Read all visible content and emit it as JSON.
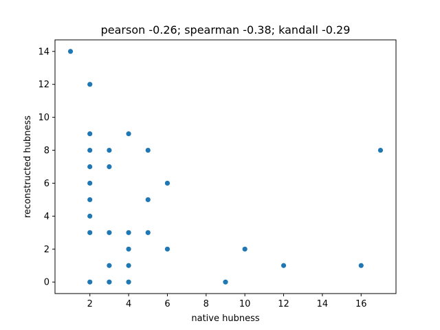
{
  "chart_data": {
    "type": "scatter",
    "title": "pearson -0.26; spearman -0.38; kandall -0.29",
    "xlabel": "native hubness",
    "ylabel": "reconstructed hubness",
    "xlim": [
      0.2,
      17.8
    ],
    "ylim": [
      -0.7,
      14.7
    ],
    "xticks": [
      2,
      4,
      6,
      8,
      10,
      12,
      14,
      16
    ],
    "yticks": [
      0,
      2,
      4,
      6,
      8,
      10,
      12,
      14
    ],
    "grid": false,
    "color": "#1f77b4",
    "points": [
      {
        "x": 1,
        "y": 14
      },
      {
        "x": 2,
        "y": 12
      },
      {
        "x": 2,
        "y": 9
      },
      {
        "x": 2,
        "y": 8
      },
      {
        "x": 2,
        "y": 7
      },
      {
        "x": 2,
        "y": 6
      },
      {
        "x": 2,
        "y": 5
      },
      {
        "x": 2,
        "y": 4
      },
      {
        "x": 2,
        "y": 3
      },
      {
        "x": 2,
        "y": 0
      },
      {
        "x": 3,
        "y": 8
      },
      {
        "x": 3,
        "y": 7
      },
      {
        "x": 3,
        "y": 3
      },
      {
        "x": 3,
        "y": 1
      },
      {
        "x": 3,
        "y": 0
      },
      {
        "x": 4,
        "y": 9
      },
      {
        "x": 4,
        "y": 3
      },
      {
        "x": 4,
        "y": 2
      },
      {
        "x": 4,
        "y": 1
      },
      {
        "x": 4,
        "y": 0
      },
      {
        "x": 5,
        "y": 8
      },
      {
        "x": 5,
        "y": 5
      },
      {
        "x": 5,
        "y": 3
      },
      {
        "x": 6,
        "y": 6
      },
      {
        "x": 6,
        "y": 2
      },
      {
        "x": 9,
        "y": 0
      },
      {
        "x": 10,
        "y": 2
      },
      {
        "x": 12,
        "y": 1
      },
      {
        "x": 16,
        "y": 1
      },
      {
        "x": 17,
        "y": 8
      }
    ]
  }
}
